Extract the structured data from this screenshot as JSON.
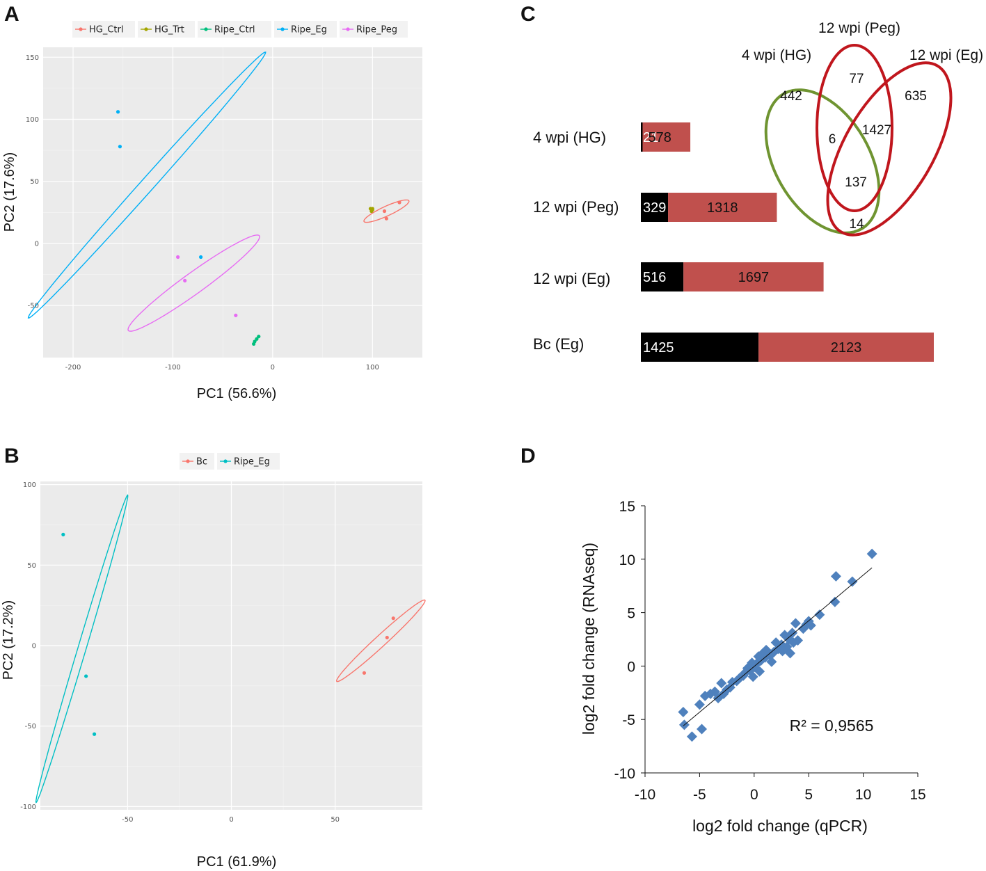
{
  "panel_labels": {
    "a": "A",
    "b": "B",
    "c": "C",
    "d": "D"
  },
  "chart_data": [
    {
      "id": "A",
      "type": "scatter",
      "xlabel": "PC1 (56.6%)",
      "ylabel": "PC2 (17.6%)",
      "xlim": [
        -230,
        150
      ],
      "ylim": [
        -92,
        158
      ],
      "xticks": [
        -200,
        -100,
        0,
        100
      ],
      "yticks": [
        -50,
        0,
        50,
        100,
        150
      ],
      "xtick_labels": [
        "-200",
        "-100",
        "0",
        "100"
      ],
      "ytick_labels": [
        "-50",
        "0",
        "50",
        "100",
        "150"
      ],
      "legend_position": "top",
      "series": [
        {
          "name": "HG_Ctrl",
          "color": "#F8766D",
          "points": [
            [
              112,
              26
            ],
            [
              114,
              20
            ],
            [
              127,
              33
            ]
          ],
          "ellipse": {
            "cx": 114,
            "cy": 26,
            "rx": 24,
            "ry": 4,
            "angle": 20
          }
        },
        {
          "name": "HG_Trt",
          "color": "#A3A500",
          "points": [
            [
              98,
              28
            ],
            [
              100,
              27
            ],
            [
              99,
              26
            ],
            [
              100,
              28
            ]
          ]
        },
        {
          "name": "Ripe_Ctrl",
          "color": "#00BF7D",
          "points": [
            [
              -14,
              -75
            ],
            [
              -16,
              -77
            ],
            [
              -18,
              -79
            ],
            [
              -19,
              -81
            ]
          ]
        },
        {
          "name": "Ripe_Eg",
          "color": "#00B0F6",
          "points": [
            [
              -155,
              106
            ],
            [
              -153,
              78
            ],
            [
              -72,
              -11
            ]
          ],
          "ellipse": {
            "cx": -126,
            "cy": 47,
            "rx": 160,
            "ry": 6,
            "angle": 42
          }
        },
        {
          "name": "Ripe_Peg",
          "color": "#E76BF3",
          "points": [
            [
              -95,
              -11
            ],
            [
              -88,
              -30
            ],
            [
              -37,
              -58
            ]
          ],
          "ellipse": {
            "cx": -79,
            "cy": -32,
            "rx": 76,
            "ry": 9,
            "angle": 30
          }
        }
      ]
    },
    {
      "id": "B",
      "type": "scatter",
      "xlabel": "PC1 (61.9%)",
      "ylabel": "PC2 (17.2%)",
      "xlim": [
        -92,
        92
      ],
      "ylim": [
        -102,
        102
      ],
      "xticks": [
        -50,
        0,
        50
      ],
      "yticks": [
        -100,
        -50,
        0,
        50,
        100
      ],
      "xtick_labels": [
        "-50",
        "0",
        "50"
      ],
      "ytick_labels": [
        "-100",
        "-50",
        "0",
        "50",
        "100"
      ],
      "legend_position": "top",
      "series": [
        {
          "name": "Bc",
          "color": "#F8766D",
          "points": [
            [
              64,
              -17
            ],
            [
              75,
              5
            ],
            [
              78,
              17
            ]
          ],
          "ellipse": {
            "cx": 72,
            "cy": 3,
            "rx": 33,
            "ry": 3,
            "angle": 50
          }
        },
        {
          "name": "Ripe_Eg",
          "color": "#00BFC4",
          "points": [
            [
              -81,
              69
            ],
            [
              -70,
              -19
            ],
            [
              -66,
              -55
            ]
          ],
          "ellipse": {
            "cx": -72,
            "cy": -2,
            "rx": 98,
            "ry": 2,
            "angle": 77
          }
        }
      ]
    },
    {
      "id": "C-venn",
      "type": "venn",
      "sets": [
        "4 wpi (HG)",
        "12 wpi (Peg)",
        "12 wpi (Eg)"
      ],
      "set_colors": [
        "#6F9431",
        "#C0161D",
        "#C0161D"
      ],
      "regions": {
        "hg_only": 442,
        "peg_only": 77,
        "eg_only": 635,
        "hg_peg": 6,
        "peg_eg": 1427,
        "hg_peg_eg": 137,
        "hg_eg": 14
      }
    },
    {
      "id": "C-bars",
      "type": "bar",
      "stacked": true,
      "orientation": "horizontal",
      "categories": [
        "4 wpi (HG)",
        "12 wpi (Peg)",
        "12 wpi (Eg)",
        "Bc (Eg)"
      ],
      "series": [
        {
          "name": "black segment",
          "color": "#000000",
          "values": [
            21,
            329,
            516,
            1425
          ]
        },
        {
          "name": "red segment",
          "color": "#C0504D",
          "values": [
            578,
            1318,
            1697,
            2123
          ]
        }
      ]
    },
    {
      "id": "D",
      "type": "scatter",
      "xlabel": "log2 fold change (qPCR)",
      "ylabel": "log2 fold change (RNAseq)",
      "xlim": [
        -10,
        15
      ],
      "ylim": [
        -10,
        15
      ],
      "xticks": [
        -10,
        -5,
        0,
        5,
        10,
        15
      ],
      "yticks": [
        -10,
        -5,
        0,
        5,
        10,
        15
      ],
      "xtick_labels": [
        "-10",
        "-5",
        "0",
        "5",
        "10",
        "15"
      ],
      "ytick_labels": [
        "-10",
        "-5",
        "0",
        "5",
        "10",
        "15"
      ],
      "color": "#4F81BD",
      "annotation": "R² = 0,9565",
      "trendline": [
        [
          -6.5,
          -5.6
        ],
        [
          10.8,
          9.2
        ]
      ],
      "points": [
        [
          10.8,
          10.5
        ],
        [
          7.5,
          8.4
        ],
        [
          9.0,
          7.9
        ],
        [
          6.0,
          4.8
        ],
        [
          7.4,
          6.0
        ],
        [
          5.0,
          4.2
        ],
        [
          4.8,
          3.9
        ],
        [
          4.5,
          3.5
        ],
        [
          5.2,
          3.8
        ],
        [
          3.8,
          4.0
        ],
        [
          3.5,
          3.1
        ],
        [
          3.2,
          2.5
        ],
        [
          3.6,
          2.2
        ],
        [
          3.0,
          1.8
        ],
        [
          2.8,
          2.9
        ],
        [
          2.5,
          2.0
        ],
        [
          2.2,
          1.6
        ],
        [
          2.0,
          2.2
        ],
        [
          1.8,
          1.3
        ],
        [
          1.5,
          1.0
        ],
        [
          1.2,
          1.4
        ],
        [
          1.0,
          0.8
        ],
        [
          0.8,
          1.2
        ],
        [
          0.6,
          0.5
        ],
        [
          0.4,
          0.9
        ],
        [
          0.2,
          0.2
        ],
        [
          0.0,
          -0.1
        ],
        [
          -0.2,
          0.3
        ],
        [
          -0.4,
          -0.4
        ],
        [
          -0.6,
          -0.2
        ],
        [
          -0.8,
          -0.6
        ],
        [
          -1.0,
          -0.9
        ],
        [
          -1.3,
          -1.1
        ],
        [
          -1.6,
          -1.4
        ],
        [
          -2.0,
          -1.5
        ],
        [
          -2.2,
          -2.0
        ],
        [
          -2.5,
          -2.2
        ],
        [
          -2.8,
          -2.6
        ],
        [
          -3.0,
          -1.6
        ],
        [
          -3.3,
          -3.0
        ],
        [
          -3.6,
          -2.4
        ],
        [
          -4.0,
          -2.6
        ],
        [
          -4.5,
          -2.8
        ],
        [
          -5.0,
          -3.6
        ],
        [
          -6.5,
          -4.3
        ],
        [
          -6.4,
          -5.5
        ],
        [
          -5.7,
          -6.6
        ],
        [
          -4.8,
          -5.9
        ],
        [
          0.5,
          -0.5
        ],
        [
          1.6,
          0.4
        ],
        [
          2.6,
          1.4
        ],
        [
          3.3,
          1.2
        ],
        [
          4.0,
          2.4
        ],
        [
          1.1,
          1.5
        ],
        [
          -0.1,
          -1.0
        ]
      ]
    }
  ]
}
